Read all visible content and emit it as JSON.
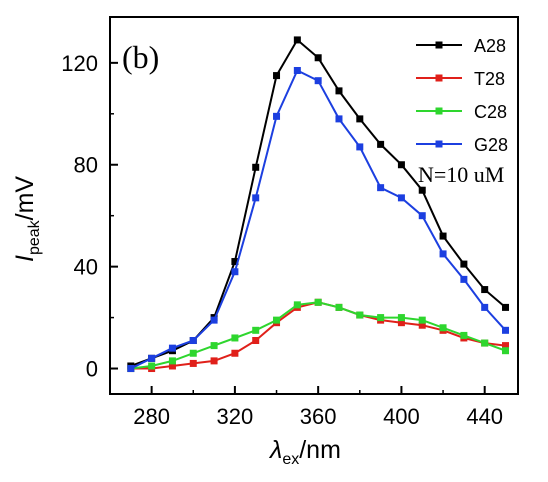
{
  "chart_data": {
    "type": "line",
    "panel_label": "(b)",
    "annotation": "N=10  uM",
    "xlabel": {
      "symbol": "λ",
      "sub": "ex",
      "unit": "/nm"
    },
    "ylabel": {
      "symbol": "I",
      "sub": "peak",
      "unit": "/mV"
    },
    "xlim": [
      260,
      456
    ],
    "ylim": [
      -10,
      138
    ],
    "xticks": [
      280,
      320,
      360,
      400,
      440
    ],
    "yticks": [
      0,
      40,
      80,
      120
    ],
    "x": [
      270,
      280,
      290,
      300,
      310,
      320,
      330,
      340,
      350,
      360,
      370,
      380,
      390,
      400,
      410,
      420,
      430,
      440,
      450
    ],
    "legend_position": "top-right",
    "series": [
      {
        "name": "A28",
        "color": "#000000",
        "values": [
          1,
          4,
          7,
          11,
          20,
          42,
          79,
          115,
          129,
          122,
          109,
          98,
          88,
          80,
          70,
          52,
          41,
          31,
          24
        ]
      },
      {
        "name": "T28",
        "color": "#e0201a",
        "values": [
          0,
          0,
          1,
          2,
          3,
          6,
          11,
          18,
          24,
          26,
          24,
          21,
          19,
          18,
          17,
          15,
          12,
          10,
          9
        ]
      },
      {
        "name": "C28",
        "color": "#2ed62e",
        "values": [
          0,
          1,
          3,
          6,
          9,
          12,
          15,
          19,
          25,
          26,
          24,
          21,
          20,
          20,
          19,
          16,
          13,
          10,
          7
        ]
      },
      {
        "name": "G28",
        "color": "#1c3fe0",
        "values": [
          0,
          4,
          8,
          11,
          19,
          38,
          67,
          99,
          117,
          113,
          98,
          87,
          71,
          67,
          60,
          45,
          35,
          24,
          15
        ]
      }
    ]
  }
}
